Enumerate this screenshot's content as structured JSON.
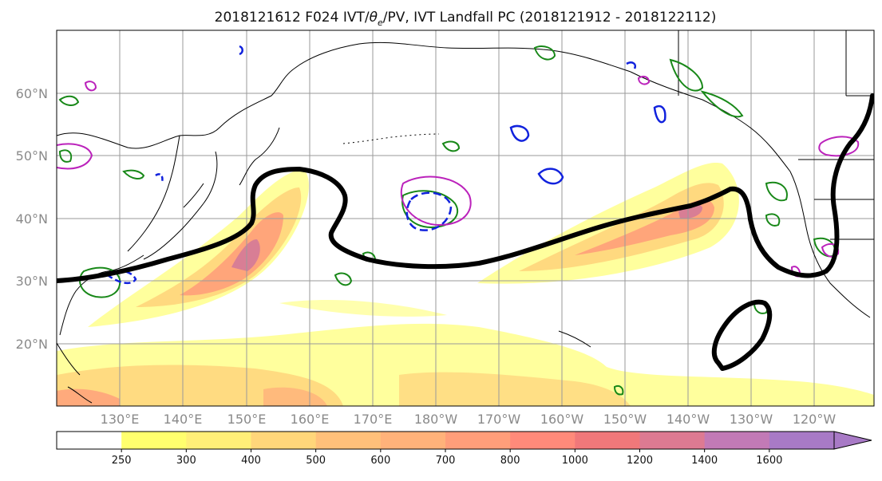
{
  "title_main": "2018121612 F024 IVT/",
  "title_sym": "θ",
  "title_sub": "e",
  "title_rest": "/PV, IVT Landfall PC (2018121912 - 2018122112)",
  "lon_labels": [
    "130°E",
    "140°E",
    "150°E",
    "160°E",
    "170°E",
    "180°W",
    "170°W",
    "160°W",
    "150°W",
    "140°W",
    "130°W",
    "120°W"
  ],
  "lat_labels": [
    "60°N",
    "50°N",
    "40°N",
    "30°N",
    "20°N"
  ],
  "colorbar": {
    "ticks": [
      "250",
      "300",
      "400",
      "500",
      "600",
      "700",
      "800",
      "1000",
      "1200",
      "1400",
      "1600"
    ],
    "colors": [
      "#ffff6e",
      "#ffef78",
      "#ffd67a",
      "#ffc07a",
      "#ffb27a",
      "#ff9e7a",
      "#ff8a7a",
      "#f0787a",
      "#dd7a92",
      "#c27ab6",
      "#a87ac6"
    ]
  },
  "colors": {
    "contour_black": "#000000",
    "pv_green": "#188818",
    "magenta": "#bb22bb",
    "blue": "#1122dd"
  }
}
